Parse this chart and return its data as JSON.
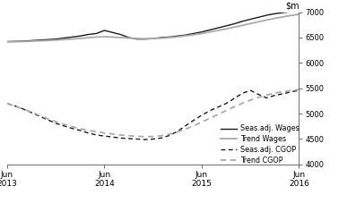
{
  "ylim": [
    4000,
    7000
  ],
  "yticks": [
    4000,
    4500,
    5000,
    5500,
    6000,
    6500,
    7000
  ],
  "xlim": [
    0,
    36
  ],
  "xtick_positions": [
    0,
    12,
    24,
    36
  ],
  "xtick_labels": [
    "Jun\n2013",
    "Jun\n2014",
    "Jun\n2015",
    "Jun\n2016"
  ],
  "seas_adj_wages": [
    6420,
    6425,
    6430,
    6440,
    6450,
    6460,
    6470,
    6490,
    6510,
    6530,
    6560,
    6580,
    6640,
    6600,
    6560,
    6500,
    6470,
    6470,
    6480,
    6500,
    6510,
    6530,
    6550,
    6580,
    6610,
    6650,
    6690,
    6730,
    6770,
    6820,
    6860,
    6900,
    6940,
    6970,
    6990,
    7010,
    7020
  ],
  "trend_wages": [
    6415,
    6418,
    6422,
    6428,
    6435,
    6442,
    6450,
    6460,
    6470,
    6483,
    6497,
    6510,
    6515,
    6510,
    6500,
    6490,
    6482,
    6478,
    6480,
    6488,
    6500,
    6515,
    6535,
    6555,
    6580,
    6610,
    6640,
    6670,
    6705,
    6740,
    6775,
    6810,
    6845,
    6878,
    6908,
    6935,
    6960
  ],
  "seas_adj_cgop": [
    5200,
    5150,
    5090,
    5020,
    4950,
    4880,
    4810,
    4760,
    4710,
    4670,
    4620,
    4580,
    4560,
    4540,
    4520,
    4510,
    4500,
    4490,
    4500,
    4520,
    4570,
    4650,
    4760,
    4870,
    4970,
    5060,
    5130,
    5200,
    5300,
    5400,
    5460,
    5380,
    5310,
    5360,
    5390,
    5430,
    5460
  ],
  "trend_cgop": [
    5200,
    5150,
    5090,
    5030,
    4965,
    4900,
    4840,
    4790,
    4745,
    4705,
    4670,
    4645,
    4620,
    4600,
    4580,
    4565,
    4555,
    4548,
    4550,
    4565,
    4595,
    4640,
    4695,
    4760,
    4835,
    4910,
    4985,
    5060,
    5135,
    5205,
    5268,
    5322,
    5368,
    5405,
    5432,
    5455,
    5475
  ],
  "color_black": "#1a1a1a",
  "color_gray": "#aaaaaa"
}
